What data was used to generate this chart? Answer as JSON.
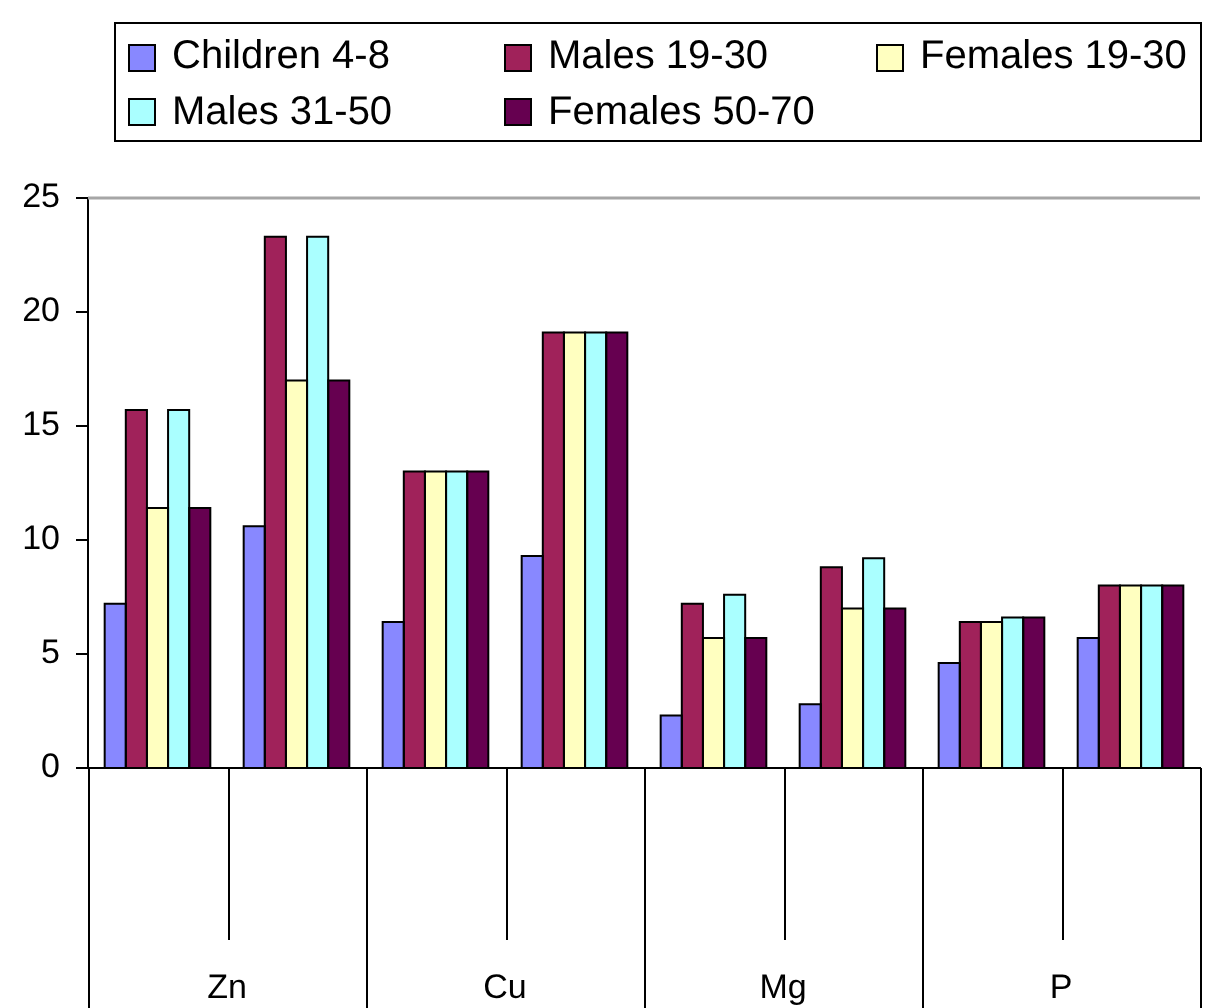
{
  "chart_data": {
    "type": "bar",
    "categories": [
      null,
      null,
      null,
      null,
      null,
      null,
      null,
      null
    ],
    "series": [
      {
        "name": "Children 4-8",
        "color": "#8888ff",
        "values": [
          7.2,
          10.6,
          6.4,
          9.3,
          2.3,
          2.8,
          4.6,
          5.7
        ]
      },
      {
        "name": "Males 19-30",
        "color": "#a0225a",
        "values": [
          15.7,
          23.3,
          13,
          19.1,
          7.2,
          8.8,
          6.4,
          8
        ]
      },
      {
        "name": "Females 19-30",
        "color": "#ffffc0",
        "values": [
          11.4,
          17,
          13,
          19.1,
          5.7,
          7,
          6.4,
          8
        ]
      },
      {
        "name": "Males 31-50",
        "color": "#aaffff",
        "values": [
          15.7,
          23.3,
          13,
          19.1,
          7.6,
          9.2,
          6.6,
          8
        ]
      },
      {
        "name": "Females 50-70",
        "color": "#660050",
        "values": [
          11.4,
          17,
          13,
          19.1,
          5.7,
          7,
          6.6,
          8
        ]
      }
    ],
    "annotations": [
      "Zn",
      "Cu",
      "Mg",
      "P"
    ],
    "ylim": [
      0,
      25
    ],
    "yticks": [
      0,
      5,
      10,
      15,
      20,
      25
    ],
    "grid": false,
    "legend": "top"
  }
}
